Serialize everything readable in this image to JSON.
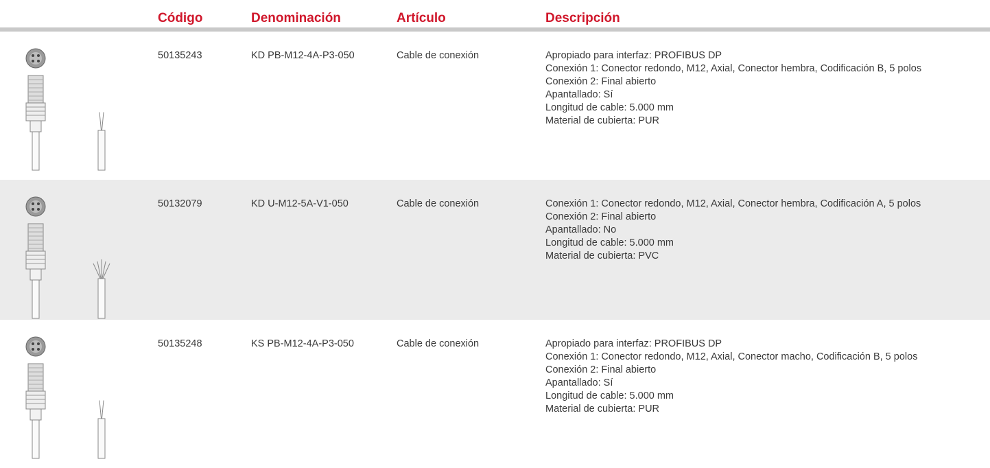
{
  "header": {
    "columns": [
      "Código",
      "Denominación",
      "Artículo",
      "Descripción"
    ]
  },
  "rows": [
    {
      "code": "50135243",
      "name": "KD PB-M12-4A-P3-050",
      "article": "Cable de conexión",
      "description": [
        "Apropiado para interfaz: PROFIBUS DP",
        "Conexión 1: Conector redondo, M12, Axial, Conector hembra, Codificación B, 5 polos",
        "Conexión 2: Final abierto",
        "Apantallado: Sí",
        "Longitud de cable: 5.000 mm",
        "Material de cubierta: PUR"
      ]
    },
    {
      "code": "50132079",
      "name": "KD U-M12-5A-V1-050",
      "article": "Cable de conexión",
      "description": [
        "Conexión 1: Conector redondo, M12, Axial, Conector hembra, Codificación A, 5 polos",
        "Conexión 2: Final abierto",
        "Apantallado: No",
        "Longitud de cable: 5.000 mm",
        "Material de cubierta: PVC"
      ]
    },
    {
      "code": "50135248",
      "name": "KS PB-M12-4A-P3-050",
      "article": "Cable de conexión",
      "description": [
        "Apropiado para interfaz: PROFIBUS DP",
        "Conexión 1: Conector redondo, M12, Axial, Conector macho, Codificación B, 5 polos",
        "Conexión 2: Final abierto",
        "Apantallado: Sí",
        "Longitud de cable: 5.000 mm",
        "Material de cubierta: PUR"
      ]
    }
  ]
}
